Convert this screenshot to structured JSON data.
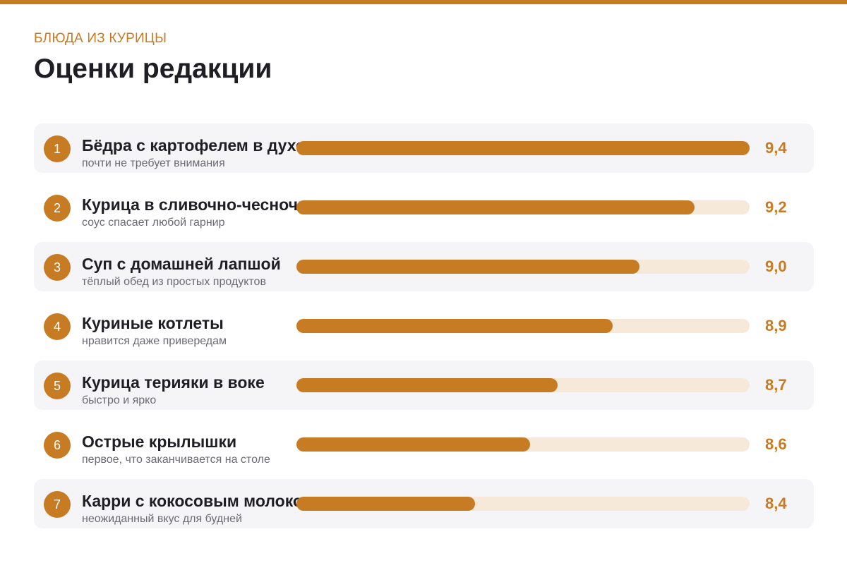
{
  "header": {
    "kicker": "БЛЮДА ИЗ КУРИЦЫ",
    "title": "Оценки редакции"
  },
  "colors": {
    "accent": "#c77b22",
    "track": "#f7e9da",
    "row_stripe": "#f5f5f8",
    "text": "#1e1e24",
    "subtext": "#6a6a72"
  },
  "chart_data": {
    "type": "bar",
    "orientation": "horizontal",
    "title": "Оценки редакции",
    "categories": [
      "Бёдра с картофелем в духовке",
      "Курица в сливочно-чесночном соусе",
      "Суп с домашней лапшой",
      "Куриные котлеты",
      "Курица терияки в воке",
      "Острые крылышки",
      "Карри с кокосовым молоком"
    ],
    "ranks": [
      "1",
      "2",
      "3",
      "4",
      "5",
      "6",
      "7"
    ],
    "subtitles": [
      "почти не требует внимания",
      "соус спасает любой гарнир",
      "тёплый обед из простых продуктов",
      "нравится даже привередам",
      "быстро и ярко",
      "первое, что заканчивается на столе",
      "неожиданный вкус для будней"
    ],
    "values": [
      9.4,
      9.2,
      9.0,
      8.9,
      8.7,
      8.6,
      8.4
    ],
    "value_labels": [
      "9,4",
      "9,2",
      "9,0",
      "8,9",
      "8,7",
      "8,6",
      "8,4"
    ],
    "xlim": [
      7.8,
      9.4
    ],
    "grid": false,
    "legend": "none"
  }
}
